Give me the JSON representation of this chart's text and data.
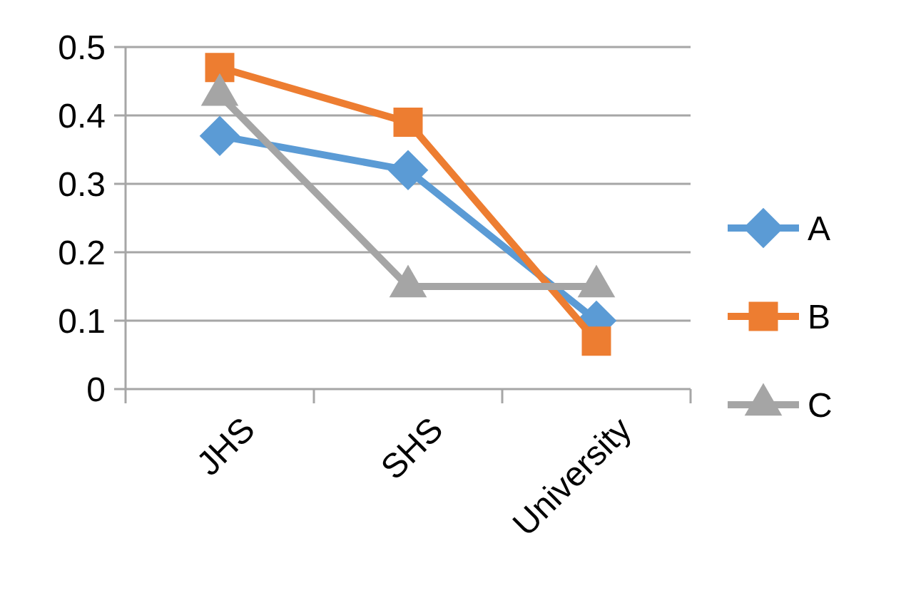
{
  "chart_data": {
    "type": "line",
    "categories": [
      "JHS",
      "SHS",
      "University"
    ],
    "series": [
      {
        "name": "A",
        "color": "#5b9bd5",
        "marker": "diamond",
        "values": [
          0.37,
          0.32,
          0.1
        ]
      },
      {
        "name": "B",
        "color": "#ed7d31",
        "marker": "square",
        "values": [
          0.47,
          0.39,
          0.07
        ]
      },
      {
        "name": "C",
        "color": "#a5a5a5",
        "marker": "triangle",
        "values": [
          0.43,
          0.15,
          0.15
        ]
      }
    ],
    "ylim": [
      0,
      0.5
    ],
    "yticks": [
      0,
      0.1,
      0.2,
      0.3,
      0.4,
      0.5
    ],
    "grid": "y",
    "legend": "right"
  }
}
